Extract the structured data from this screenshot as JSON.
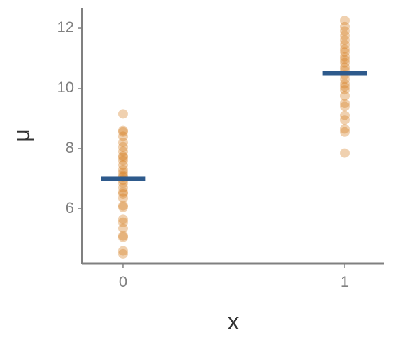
{
  "chart_data": {
    "type": "scatter",
    "x_label": "x",
    "y_label": "μ",
    "xlim": [
      -0.185,
      1.179
    ],
    "ylim": [
      4.18,
      12.66
    ],
    "xticks": [
      0,
      1
    ],
    "yticks": [
      6,
      8,
      10,
      12
    ],
    "grid": false,
    "series": [
      {
        "marker": "circle",
        "color": "#d47a1e",
        "opacity": 0.35,
        "x": [
          0,
          0,
          0,
          0,
          0,
          0,
          0,
          0,
          0,
          0,
          0,
          0,
          0,
          0,
          0,
          0,
          0,
          0,
          0,
          0,
          0,
          0,
          0,
          0,
          0,
          0,
          0,
          0,
          0,
          0,
          1,
          1,
          1,
          1,
          1,
          1,
          1,
          1,
          1,
          1,
          1,
          1,
          1,
          1,
          1,
          1,
          1,
          1,
          1,
          1,
          1,
          1,
          1,
          1,
          1,
          1
        ],
        "values": [
          9.15,
          8.6,
          8.55,
          8.4,
          8.2,
          8.05,
          7.9,
          7.75,
          7.7,
          7.6,
          7.45,
          7.3,
          7.2,
          7.1,
          7.05,
          6.95,
          6.85,
          6.7,
          6.55,
          6.5,
          6.35,
          6.1,
          6.05,
          5.65,
          5.55,
          5.35,
          5.1,
          5.05,
          4.6,
          4.5,
          12.25,
          12.05,
          11.9,
          11.75,
          11.6,
          11.45,
          11.3,
          11.2,
          11.05,
          10.95,
          10.85,
          10.7,
          10.6,
          10.45,
          10.3,
          10.15,
          10.05,
          9.95,
          9.75,
          9.5,
          9.4,
          9.1,
          8.95,
          8.65,
          8.55,
          7.85
        ]
      },
      {
        "marker": "hline",
        "color": "#2e5a8c",
        "opacity": 1,
        "x": [
          0,
          1
        ],
        "values": [
          7.0,
          10.5
        ]
      }
    ]
  }
}
